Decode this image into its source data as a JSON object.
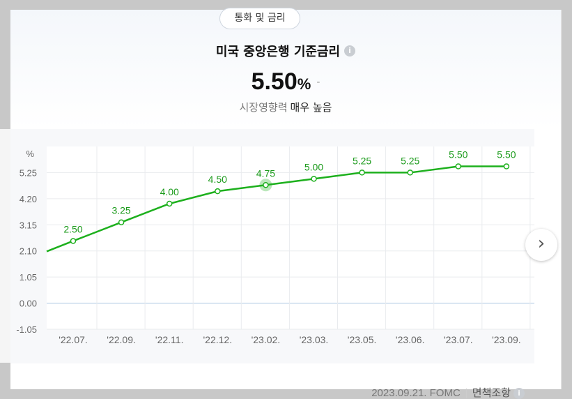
{
  "category": "통화 및 금리",
  "indicator": {
    "title": "미국 중앙은행 기준금리",
    "info_icon": "i",
    "value": "5.50",
    "unit": "%",
    "change": "-",
    "impact_label": "시장영향력",
    "impact_value": "매우 높음"
  },
  "footer": {
    "date_source": "2023.09.21. FOMC",
    "disclaimer": "면책조항",
    "info_icon": "i"
  },
  "nav": {
    "next_icon": "›"
  },
  "colors": {
    "line": "#1db01d",
    "label": "#1a9a1a",
    "zero_line": "#a9c4e0",
    "grid": "#e9ebee"
  },
  "chart_data": {
    "type": "line",
    "ylabel": "%",
    "y_ticks": [
      "5.25",
      "4.20",
      "3.15",
      "2.10",
      "1.05",
      "0.00",
      "-1.05"
    ],
    "ylim": [
      -1.05,
      6.3
    ],
    "categories": [
      "'22.07.",
      "'22.09.",
      "'22.11.",
      "'22.12.",
      "'23.02.",
      "'23.03.",
      "'23.05.",
      "'23.06.",
      "'23.07.",
      "'23.09."
    ],
    "values": [
      2.5,
      3.25,
      4.0,
      4.5,
      4.75,
      5.0,
      5.25,
      5.25,
      5.5,
      5.5
    ],
    "data_labels": [
      "2.50",
      "3.25",
      "4.00",
      "4.50",
      "4.75",
      "5.00",
      "5.25",
      "5.25",
      "5.50",
      "5.50"
    ],
    "highlight_index": 4,
    "grid": true
  }
}
